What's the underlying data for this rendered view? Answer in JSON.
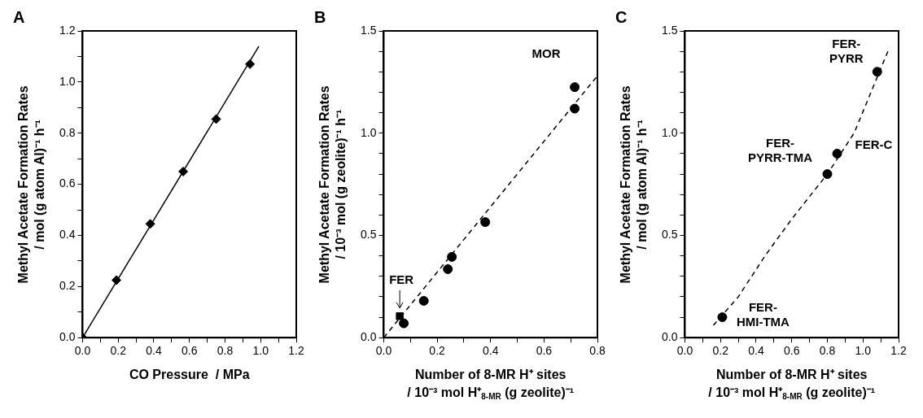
{
  "chart_data": [
    {
      "type": "scatter",
      "title": "A",
      "xlabel": "CO Pressure  / MPa",
      "ylabel": "Methyl Acetate Formation Rates\n/ mol (g atom Al)⁻¹ h⁻¹",
      "xlim": [
        0,
        1.2
      ],
      "xticks": [
        {
          "value": 0,
          "label": "0.0"
        },
        {
          "value": 0.1,
          "label": null
        },
        0.2,
        {
          "value": 0.3,
          "label": null
        },
        0.4,
        {
          "value": 0.5,
          "label": null
        },
        0.6,
        {
          "value": 0.7,
          "label": null
        },
        0.8,
        {
          "value": 0.9,
          "label": null
        },
        {
          "value": 1,
          "label": "1.0"
        },
        {
          "value": 1.1,
          "label": null
        },
        1.2
      ],
      "ylim": [
        0,
        1.2
      ],
      "yticks": [
        {
          "value": 0,
          "label": "0.0"
        },
        {
          "value": 0.1,
          "label": null
        },
        0.2,
        {
          "value": 0.3,
          "label": null
        },
        0.4,
        {
          "value": 0.5,
          "label": null
        },
        0.6,
        {
          "value": 0.7,
          "label": null
        },
        0.8,
        {
          "value": 0.9,
          "label": null
        },
        {
          "value": 1,
          "label": "1.0"
        },
        {
          "value": 1.1,
          "label": null
        },
        1.2
      ],
      "grid": false,
      "series": [
        {
          "type": "line",
          "color": "#000000",
          "marker": "none",
          "line_style": "solid",
          "x": [
            0,
            0.99
          ],
          "values": [
            0,
            1.14
          ]
        },
        {
          "type": "scatter",
          "color": "#000000",
          "marker": "diamond",
          "x": [
            0,
            0.19,
            0.38,
            0.565,
            0.75,
            0.94
          ],
          "values": [
            0,
            0.225,
            0.445,
            0.65,
            0.855,
            1.07
          ]
        }
      ]
    },
    {
      "type": "scatter",
      "title": "B",
      "xlabel": "Number of 8-MR H⁺ sites\n/ 10⁻³ mol H⁺$_{8-MR}$ (g zeolite)⁻¹",
      "ylabel": "Methyl Acetate Formation Rates\n/ 10⁻³ mol (g zeolite)⁻¹ h⁻¹",
      "xlim": [
        0,
        0.8
      ],
      "xticks": [
        {
          "value": 0,
          "label": "0.0"
        },
        {
          "value": 0.1,
          "label": null
        },
        0.2,
        {
          "value": 0.3,
          "label": null
        },
        0.4,
        {
          "value": 0.5,
          "label": null
        },
        0.6,
        {
          "value": 0.7,
          "label": null
        },
        0.8
      ],
      "ylim": [
        0,
        1.5
      ],
      "yticks": [
        {
          "value": 0,
          "label": "0.0"
        },
        {
          "value": 0.1,
          "label": null
        },
        {
          "value": 0.2,
          "label": null
        },
        {
          "value": 0.3,
          "label": null
        },
        {
          "value": 0.4,
          "label": null
        },
        0.5,
        {
          "value": 0.6,
          "label": null
        },
        {
          "value": 0.7,
          "label": null
        },
        {
          "value": 0.8,
          "label": null
        },
        {
          "value": 0.9,
          "label": null
        },
        {
          "value": 1,
          "label": "1.0"
        },
        {
          "value": 1.1,
          "label": null
        },
        {
          "value": 1.2,
          "label": null
        },
        {
          "value": 1.3,
          "label": null
        },
        {
          "value": 1.4,
          "label": null
        },
        1.5
      ],
      "grid": false,
      "annotations": [
        {
          "text": "MOR",
          "x": 0.715,
          "y": 1.225
        },
        {
          "text": "FER",
          "x": 0.06,
          "y": 0.105
        }
      ],
      "series": [
        {
          "type": "line",
          "color": "#000000",
          "marker": "none",
          "line_style": "dashed",
          "x": [
            0,
            0.8
          ],
          "values": [
            0,
            1.28
          ]
        },
        {
          "type": "scatter",
          "color": "#000000",
          "marker": "circle",
          "x": [
            0.075,
            0.15,
            0.24,
            0.255,
            0.38,
            0.715,
            0.715
          ],
          "values": [
            0.07,
            0.18,
            0.335,
            0.395,
            0.565,
            1.12,
            1.225
          ]
        },
        {
          "type": "scatter",
          "color": "#000000",
          "marker": "square",
          "x": [
            0.06
          ],
          "values": [
            0.105
          ]
        }
      ]
    },
    {
      "type": "scatter",
      "title": "C",
      "xlabel": "Number of 8-MR H⁺ sites\n/ 10⁻³ mol H⁺$_{8-MR}$ (g zeolite)⁻¹",
      "ylabel": "Methyl Acetate Formation Rates\n/ mol (g atom Al)⁻¹ h⁻¹",
      "xlim": [
        0,
        1.2
      ],
      "xticks": [
        {
          "value": 0,
          "label": "0.0"
        },
        {
          "value": 0.1,
          "label": null
        },
        0.2,
        {
          "value": 0.3,
          "label": null
        },
        0.4,
        {
          "value": 0.5,
          "label": null
        },
        0.6,
        {
          "value": 0.7,
          "label": null
        },
        0.8,
        {
          "value": 0.9,
          "label": null
        },
        {
          "value": 1,
          "label": "1.0"
        },
        {
          "value": 1.1,
          "label": null
        },
        1.2
      ],
      "ylim": [
        0,
        1.5
      ],
      "yticks": [
        {
          "value": 0,
          "label": "0.0"
        },
        {
          "value": 0.1,
          "label": null
        },
        {
          "value": 0.2,
          "label": null
        },
        {
          "value": 0.3,
          "label": null
        },
        {
          "value": 0.4,
          "label": null
        },
        0.5,
        {
          "value": 0.6,
          "label": null
        },
        {
          "value": 0.7,
          "label": null
        },
        {
          "value": 0.8,
          "label": null
        },
        {
          "value": 0.9,
          "label": null
        },
        {
          "value": 1,
          "label": "1.0"
        },
        {
          "value": 1.1,
          "label": null
        },
        {
          "value": 1.2,
          "label": null
        },
        {
          "value": 1.3,
          "label": null
        },
        {
          "value": 1.4,
          "label": null
        },
        1.5
      ],
      "grid": false,
      "annotations": [
        {
          "text": "FER-\nPYRR",
          "x": 1.08,
          "y": 1.3
        },
        {
          "text": "FER-C",
          "x": 0.855,
          "y": 0.9
        },
        {
          "text": "FER-\nPYRR-TMA",
          "x": 0.8,
          "y": 0.8
        },
        {
          "text": "FER-\nHMI-TMA",
          "x": 0.21,
          "y": 0.1
        }
      ],
      "series": [
        {
          "type": "line",
          "color": "#000000",
          "marker": "none",
          "line_style": "dashed",
          "x": [
            0.16,
            0.3,
            0.45,
            0.6,
            0.8,
            0.95,
            1.14
          ],
          "values": [
            0.06,
            0.2,
            0.4,
            0.58,
            0.8,
            1.0,
            1.4
          ]
        },
        {
          "type": "scatter",
          "color": "#000000",
          "marker": "circle",
          "x": [
            0.21,
            0.8,
            0.855,
            1.08
          ],
          "values": [
            0.1,
            0.8,
            0.9,
            1.3
          ]
        }
      ]
    }
  ]
}
